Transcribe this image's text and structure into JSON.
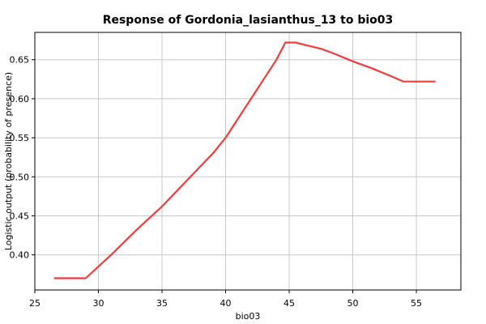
{
  "chart_data": {
    "type": "line",
    "title": "Response of Gordonia_lasianthus_13 to bio03",
    "xlabel": "bio03",
    "ylabel": "Logistic output (probability of presence)",
    "xlim": [
      25,
      58.5
    ],
    "ylim": [
      0.355,
      0.685
    ],
    "x_ticks": [
      25,
      30,
      35,
      40,
      45,
      50,
      55
    ],
    "y_ticks": [
      0.4,
      0.45,
      0.5,
      0.55,
      0.6,
      0.65
    ],
    "x_tick_labels": [
      "25",
      "30",
      "35",
      "40",
      "45",
      "50",
      "55"
    ],
    "y_tick_labels": [
      "0.40",
      "0.45",
      "0.50",
      "0.55",
      "0.60",
      "0.65"
    ],
    "grid": true,
    "line_color": "#f03c3c",
    "series": [
      {
        "x": [
          26.5,
          28.0,
          29.0,
          30.0,
          31.0,
          32.0,
          33.0,
          34.0,
          35.0,
          36.0,
          37.0,
          38.0,
          39.0,
          40.0,
          41.0,
          42.0,
          43.0,
          44.0,
          44.7,
          45.5,
          46.5,
          47.5,
          48.5,
          50.0,
          51.5,
          53.0,
          54.0,
          55.0,
          56.5
        ],
        "y": [
          0.37,
          0.37,
          0.37,
          0.385,
          0.4,
          0.416,
          0.432,
          0.447,
          0.462,
          0.479,
          0.496,
          0.513,
          0.53,
          0.55,
          0.575,
          0.6,
          0.625,
          0.65,
          0.672,
          0.672,
          0.668,
          0.664,
          0.658,
          0.648,
          0.639,
          0.629,
          0.622,
          0.622,
          0.622
        ]
      }
    ]
  }
}
